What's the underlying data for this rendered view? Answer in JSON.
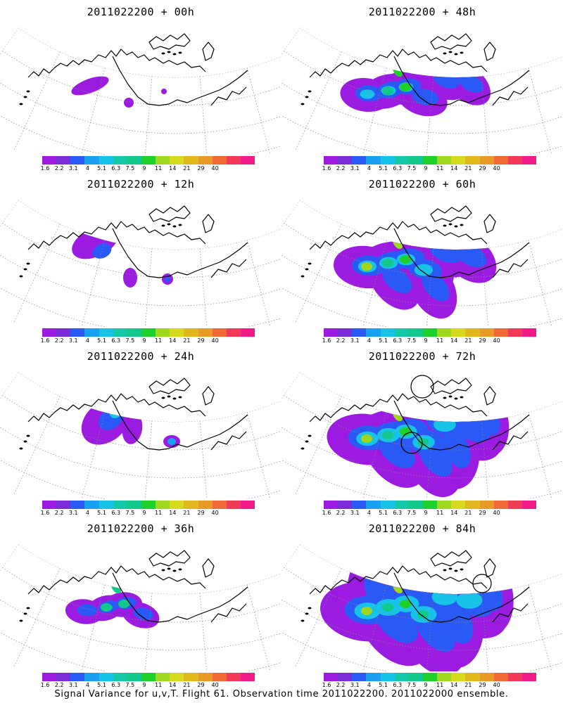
{
  "caption": "Signal Variance for u,v,T. Flight 61. Observation time 2011022200. 2011022000 ensemble.",
  "colorbar": {
    "colors": [
      "#9b1be0",
      "#7a2dd6",
      "#2a5af5",
      "#1aa0f0",
      "#17c4e8",
      "#14c8a8",
      "#12c88a",
      "#1ed02a",
      "#a0d81e",
      "#d8d81e",
      "#e0b81e",
      "#e89a28",
      "#f06a38",
      "#f03a58",
      "#f01a88"
    ],
    "labels": [
      "1.6",
      "2.2",
      "3.1",
      "4",
      "5.1",
      "6.3",
      "7.5",
      "9",
      "11",
      "14",
      "21",
      "29",
      "40"
    ]
  },
  "panels": [
    {
      "title": "2011022200 + 00h",
      "level": 0
    },
    {
      "title": "2011022200 + 48h",
      "level": 4
    },
    {
      "title": "2011022200 + 12h",
      "level": 1
    },
    {
      "title": "2011022200 + 60h",
      "level": 5
    },
    {
      "title": "2011022200 + 24h",
      "level": 2
    },
    {
      "title": "2011022200 + 72h",
      "level": 6
    },
    {
      "title": "2011022200 + 36h",
      "level": 3
    },
    {
      "title": "2011022200 + 84h",
      "level": 7
    }
  ]
}
